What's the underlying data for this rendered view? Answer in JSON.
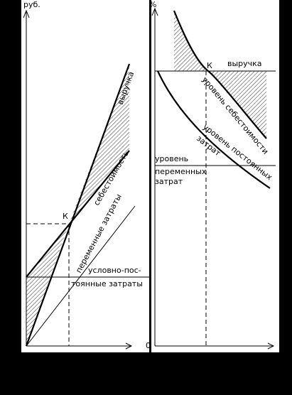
{
  "left_panel": {
    "y_axis_label": "руб.",
    "point_label": "К",
    "revenue_label": "выручка",
    "cost_label": "себестоимость",
    "variable_cost_label": "переменные затраты",
    "fixed_cost_label_line1": "условно-пос-",
    "fixed_cost_label_line2": "тоянные затраты"
  },
  "right_panel": {
    "y_axis_label": "%",
    "origin_label": "0",
    "point_label": "К",
    "revenue_label": "выручка",
    "cost_level_label": "уровень себестоимости",
    "fixed_level_label_line1": "уровень постоянных",
    "fixed_level_label_line2": "затрат",
    "variable_level_label_line1": "уровень",
    "variable_level_label_line2": "переменных",
    "variable_level_label_line3": "затрат"
  }
}
